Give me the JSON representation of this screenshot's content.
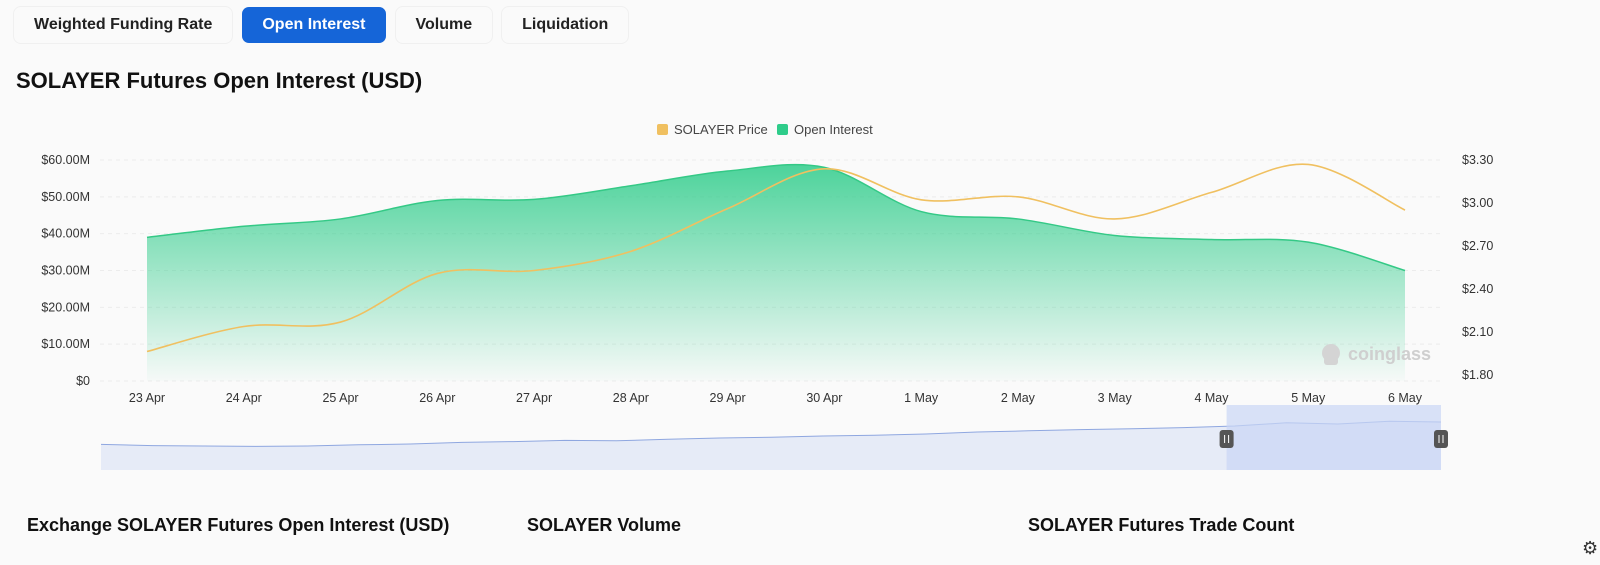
{
  "tabs": [
    {
      "label": "Weighted Funding Rate",
      "active": false
    },
    {
      "label": "Open Interest",
      "active": true
    },
    {
      "label": "Volume",
      "active": false
    },
    {
      "label": "Liquidation",
      "active": false
    }
  ],
  "page_title": "SOLAYER Futures Open Interest (USD)",
  "watermark": "coinglass",
  "sections": [
    "Exchange SOLAYER Futures Open Interest (USD)",
    "SOLAYER Volume",
    "SOLAYER Futures Trade Count"
  ],
  "colors": {
    "price": "#f0c060",
    "oi": "#2ecc8a",
    "accent": "#1565d8",
    "navigator": "#d6e0f7"
  },
  "chart_data": {
    "type": "area",
    "title": "SOLAYER Futures Open Interest (USD)",
    "legend_position": "top-center",
    "grid": true,
    "x": [
      "23 Apr",
      "24 Apr",
      "25 Apr",
      "26 Apr",
      "27 Apr",
      "28 Apr",
      "29 Apr",
      "30 Apr",
      "1 May",
      "2 May",
      "3 May",
      "4 May",
      "5 May",
      "6 May"
    ],
    "y_left": {
      "ticks": [
        "$0",
        "$10.00M",
        "$20.00M",
        "$30.00M",
        "$40.00M",
        "$50.00M",
        "$60.00M"
      ],
      "range": [
        0,
        60000000
      ]
    },
    "y_right": {
      "ticks": [
        "$1.80",
        "$2.10",
        "$2.40",
        "$2.70",
        "$3.00",
        "$3.30"
      ],
      "range": [
        1.8,
        3.3
      ]
    },
    "series": [
      {
        "name": "SOLAYER Price",
        "axis": "right",
        "type": "line",
        "values": [
          2.0,
          2.17,
          2.2,
          2.53,
          2.55,
          2.68,
          2.97,
          3.24,
          3.03,
          3.05,
          2.9,
          3.08,
          3.27,
          2.96
        ]
      },
      {
        "name": "Open Interest",
        "axis": "left",
        "type": "area",
        "values": [
          39000000,
          42000000,
          44000000,
          49000000,
          49300000,
          53000000,
          57000000,
          58000000,
          46000000,
          44000000,
          39500000,
          38400000,
          37700000,
          30000000
        ]
      }
    ],
    "navigator": {
      "values": [
        0.34,
        0.31,
        0.3,
        0.29,
        0.3,
        0.33,
        0.35,
        0.39,
        0.41,
        0.44,
        0.43,
        0.47,
        0.5,
        0.52,
        0.55,
        0.57,
        0.6,
        0.65,
        0.68,
        0.71,
        0.73,
        0.76,
        0.8,
        0.88,
        0.85,
        0.92,
        0.9
      ],
      "selected": [
        0.84,
        1.0
      ]
    }
  }
}
